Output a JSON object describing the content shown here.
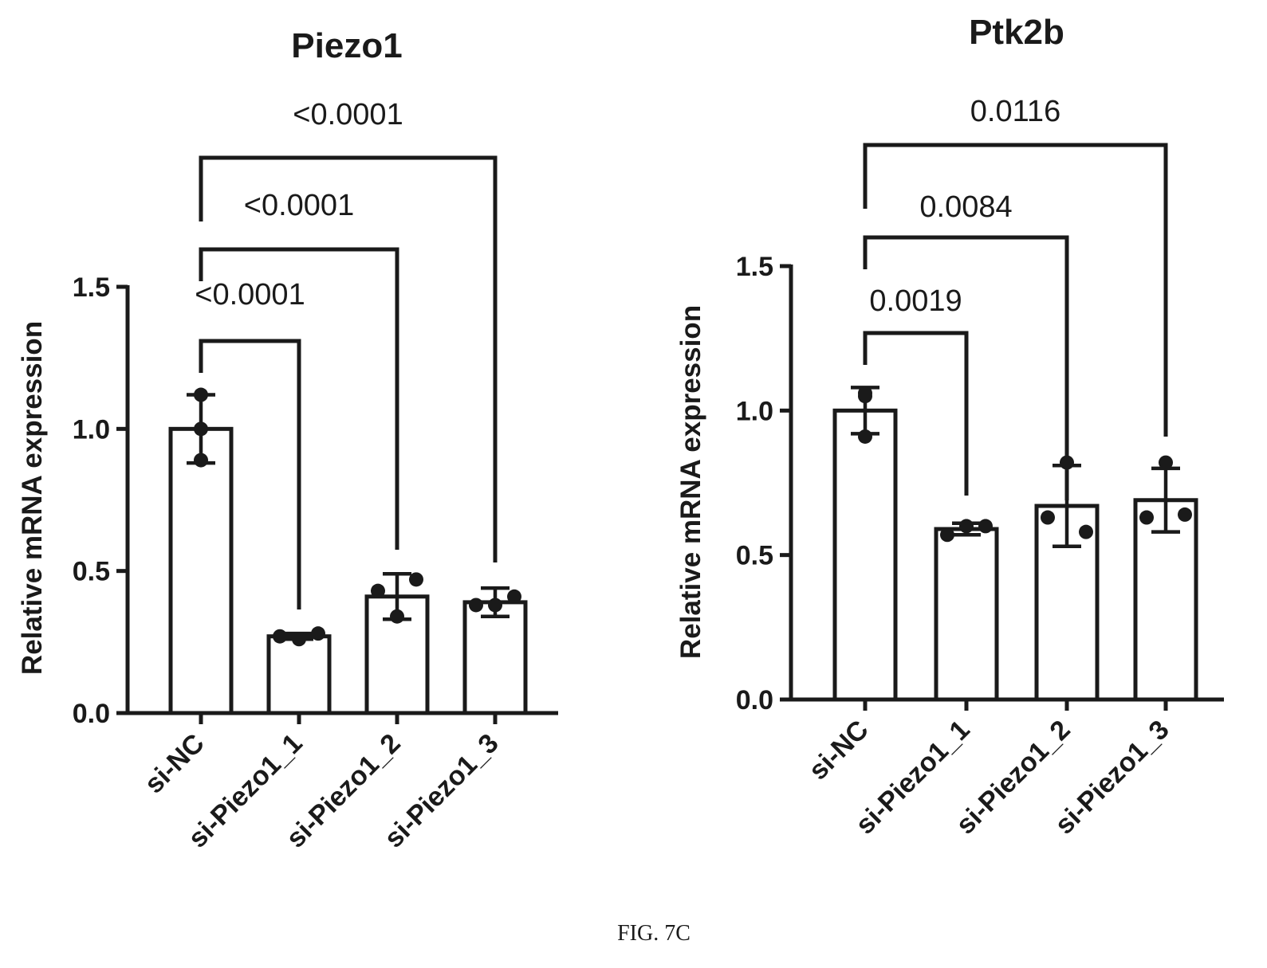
{
  "caption": "FIG. 7C",
  "chart_data": [
    {
      "type": "bar",
      "title": "Piezo1",
      "ylabel": "Relative mRNA expression",
      "xlabel": "",
      "categories": [
        "si-NC",
        "si-Piezo1_1",
        "si-Piezo1_2",
        "si-Piezo1_3"
      ],
      "values": [
        1.0,
        0.27,
        0.41,
        0.39
      ],
      "error": [
        0.12,
        0.01,
        0.08,
        0.05
      ],
      "points": [
        [
          1.12,
          1.0,
          0.89
        ],
        [
          0.26,
          0.27,
          0.28
        ],
        [
          0.34,
          0.43,
          0.47
        ],
        [
          0.38,
          0.38,
          0.41
        ]
      ],
      "ylim": [
        0,
        1.5
      ],
      "yticks": [
        0.0,
        0.5,
        1.0,
        1.5
      ],
      "ytick_labels": [
        "0.0",
        "0.5",
        "1.0",
        "1.5"
      ],
      "comparisons": [
        {
          "from": "si-NC",
          "to": "si-Piezo1_1",
          "p": "<0.0001"
        },
        {
          "from": "si-NC",
          "to": "si-Piezo1_2",
          "p": "<0.0001"
        },
        {
          "from": "si-NC",
          "to": "si-Piezo1_3",
          "p": "<0.0001"
        }
      ]
    },
    {
      "type": "bar",
      "title": "Ptk2b",
      "ylabel": "Relative mRNA expression",
      "xlabel": "",
      "categories": [
        "si-NC",
        "si-Piezo1_1",
        "si-Piezo1_2",
        "si-Piezo1_3"
      ],
      "values": [
        1.0,
        0.59,
        0.67,
        0.69
      ],
      "error": [
        0.08,
        0.02,
        0.14,
        0.11
      ],
      "points": [
        [
          1.06,
          0.91,
          1.05
        ],
        [
          0.6,
          0.57,
          0.6
        ],
        [
          0.82,
          0.63,
          0.58
        ],
        [
          0.82,
          0.63,
          0.64
        ]
      ],
      "ylim": [
        0,
        1.5
      ],
      "yticks": [
        0.0,
        0.5,
        1.0,
        1.5
      ],
      "ytick_labels": [
        "0.0",
        "0.5",
        "1.0",
        "1.5"
      ],
      "comparisons": [
        {
          "from": "si-NC",
          "to": "si-Piezo1_1",
          "p": "0.0019"
        },
        {
          "from": "si-NC",
          "to": "si-Piezo1_2",
          "p": "0.0084"
        },
        {
          "from": "si-NC",
          "to": "si-Piezo1_3",
          "p": "0.0116"
        }
      ]
    }
  ]
}
